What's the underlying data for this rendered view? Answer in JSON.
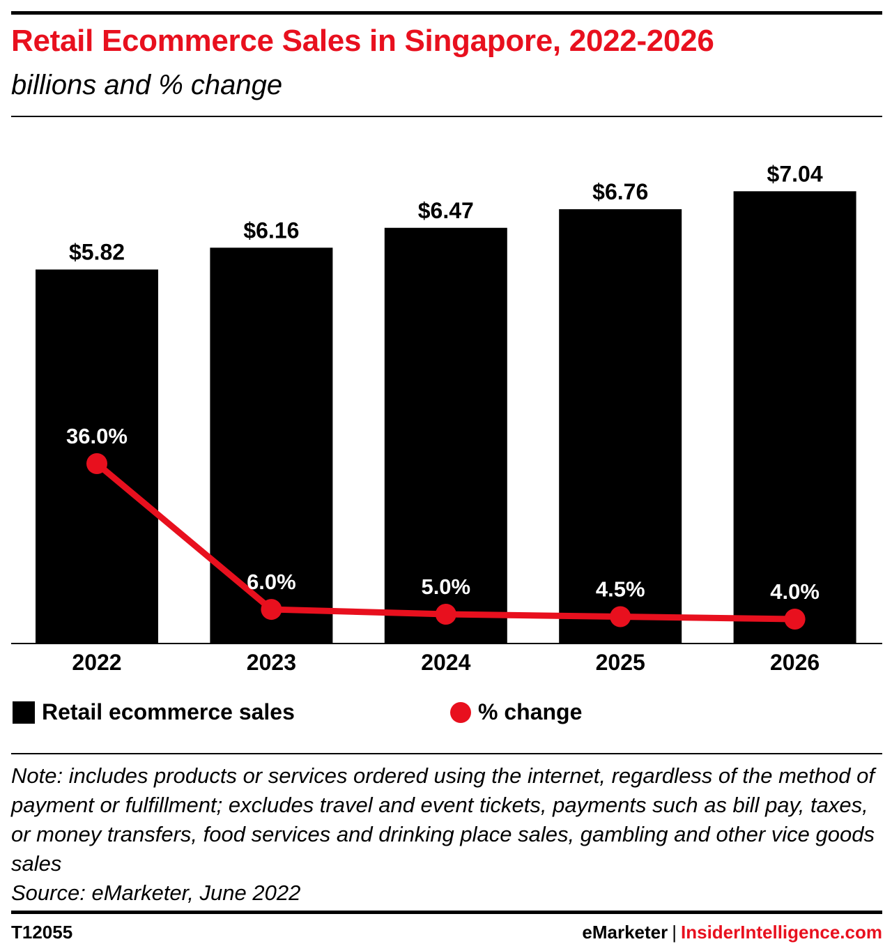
{
  "header": {
    "title": "Retail Ecommerce Sales in Singapore, 2022-2026",
    "subtitle": "billions and % change"
  },
  "chart_data": {
    "type": "bar",
    "categories": [
      "2022",
      "2023",
      "2024",
      "2025",
      "2026"
    ],
    "series": [
      {
        "name": "Retail ecommerce sales",
        "type": "bar",
        "values": [
          5.82,
          6.16,
          6.47,
          6.76,
          7.04
        ],
        "labels": [
          "$5.82",
          "$6.16",
          "$6.47",
          "$6.76",
          "$7.04"
        ],
        "color": "#000000"
      },
      {
        "name": "% change",
        "type": "line",
        "values": [
          36.0,
          6.0,
          5.0,
          4.5,
          4.0
        ],
        "labels": [
          "36.0%",
          "6.0%",
          "5.0%",
          "4.5%",
          "4.0%"
        ],
        "color": "#e8101e"
      }
    ],
    "legend_position": "bottom",
    "grid": false
  },
  "legend": {
    "bars_label": "Retail ecommerce sales",
    "line_label": "% change"
  },
  "note": {
    "text": "Note: includes products or services ordered using the internet, regardless of the method of payment or fulfillment; excludes travel and event tickets, payments such as bill pay, taxes, or money transfers, food services and drinking place sales, gambling and other vice goods sales",
    "source": "Source: eMarketer, June 2022"
  },
  "footer": {
    "id": "T12055",
    "brand_a": "eMarketer",
    "separator": "|",
    "brand_b": "InsiderIntelligence.com"
  }
}
